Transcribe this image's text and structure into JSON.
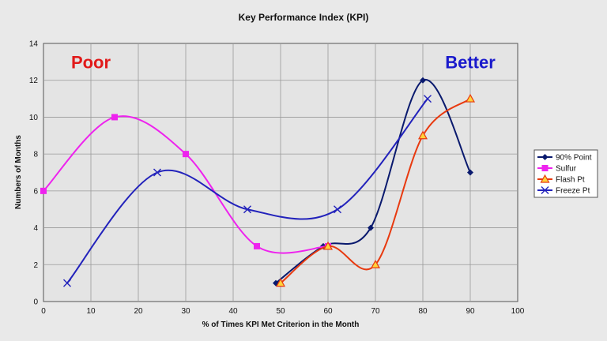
{
  "chart_data": {
    "type": "line",
    "title": "Key Performance Index (KPI)",
    "xlabel": "% of Times KPI Met Criterion in the Month",
    "ylabel": "Numbers of Months",
    "xlim": [
      0,
      100
    ],
    "ylim": [
      0,
      14
    ],
    "x_ticks": [
      0,
      10,
      20,
      30,
      40,
      50,
      60,
      70,
      80,
      90,
      100
    ],
    "y_ticks": [
      0,
      2,
      4,
      6,
      8,
      10,
      12,
      14
    ],
    "grid": true,
    "legend_position": "right",
    "series": [
      {
        "name": "90% Point",
        "color": "#0a1a6e",
        "marker": "diamond",
        "points": [
          [
            49,
            1
          ],
          [
            59,
            3
          ],
          [
            69,
            4
          ],
          [
            80,
            12
          ],
          [
            90,
            7
          ]
        ]
      },
      {
        "name": "Sulfur",
        "color": "#ee22ee",
        "marker": "square",
        "points": [
          [
            0,
            6
          ],
          [
            15,
            10
          ],
          [
            30,
            8
          ],
          [
            45,
            3
          ],
          [
            60,
            3
          ]
        ]
      },
      {
        "name": "Flash Pt",
        "color": "#e83a10",
        "marker": "triangle",
        "points": [
          [
            50,
            1
          ],
          [
            60,
            3
          ],
          [
            70,
            2
          ],
          [
            80,
            9
          ],
          [
            90,
            11
          ]
        ]
      },
      {
        "name": "Freeze Pt",
        "color": "#2222bb",
        "marker": "x",
        "points": [
          [
            5,
            1
          ],
          [
            24,
            7
          ],
          [
            43,
            5
          ],
          [
            62,
            5
          ],
          [
            81,
            11
          ]
        ]
      }
    ],
    "annotations": [
      {
        "text": "Poor",
        "color": "#e11a1a",
        "x": 10,
        "y": 13
      },
      {
        "text": "Better",
        "color": "#1a1acc",
        "x": 90,
        "y": 13
      }
    ]
  }
}
